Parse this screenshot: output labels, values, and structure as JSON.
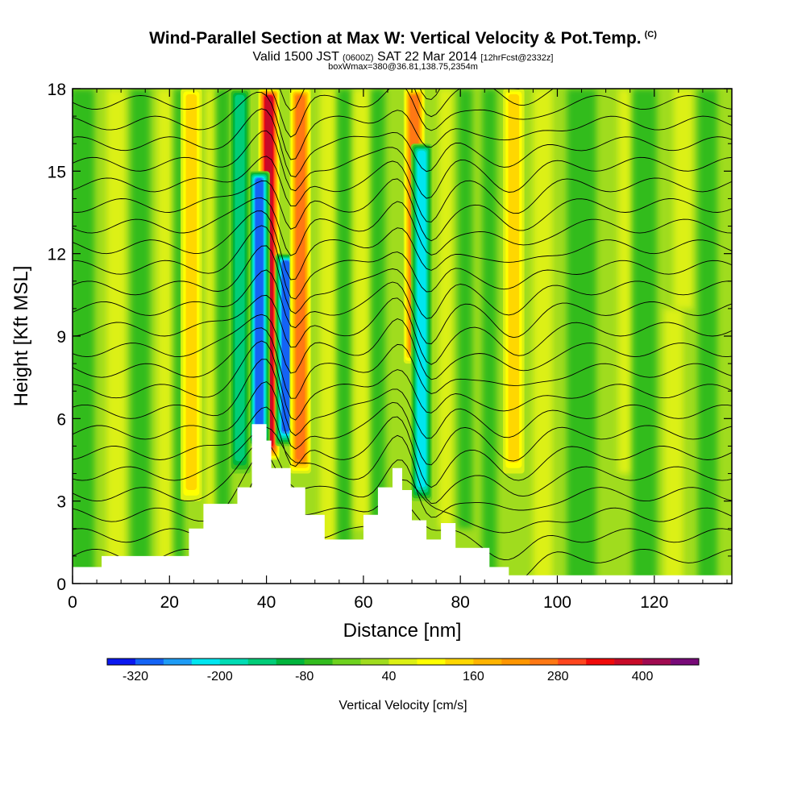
{
  "title": "Wind-Parallel Section at Max W: Vertical Velocity & Pot.Temp.",
  "copyright": "(C)",
  "subtitle_main": "Valid 1500 JST",
  "subtitle_small": "(0600Z)",
  "subtitle_date": "SAT 22 Mar 2014",
  "subtitle_fcst": "[12hrFcst@2332z]",
  "subtitle_box": "boxWmax=380@36.81,138.75,2354m",
  "chart_data": {
    "type": "heatmap",
    "xlabel": "Distance [nm]",
    "ylabel": "Height [Kft MSL]",
    "xlim": [
      0,
      136
    ],
    "ylim": [
      0,
      18
    ],
    "x_ticks": [
      "0",
      "20",
      "40",
      "60",
      "80",
      "100",
      "120"
    ],
    "y_ticks": [
      "0",
      "3",
      "6",
      "9",
      "12",
      "15",
      "18"
    ],
    "colorbar": {
      "label": "Vertical Velocity [cm/s]",
      "tick_labels": [
        "-320",
        "-200",
        "-80",
        "40",
        "160",
        "280",
        "400"
      ],
      "levels": [
        -360,
        -320,
        -280,
        -240,
        -200,
        -160,
        -120,
        -80,
        -40,
        0,
        40,
        80,
        120,
        160,
        200,
        240,
        280,
        320,
        360,
        400,
        440,
        480
      ],
      "colors": [
        "#0a18f0",
        "#1463f5",
        "#1e9cf5",
        "#00e6f0",
        "#00dcb4",
        "#00cd78",
        "#00b43c",
        "#32bc1e",
        "#6ed21e",
        "#a0dc1e",
        "#dcf014",
        "#ffff00",
        "#ffd700",
        "#ffb400",
        "#ff9600",
        "#ff7814",
        "#ff461e",
        "#f00a0a",
        "#c80a28",
        "#a00a50",
        "#780a78"
      ]
    },
    "velocity_features": [
      {
        "x": 40.5,
        "y_range": [
          4.5,
          18
        ],
        "peak": 360
      },
      {
        "x": 38.5,
        "y_range": [
          5,
          15
        ],
        "peak": -320
      },
      {
        "x": 44,
        "y_range": [
          5,
          12
        ],
        "peak": -320
      },
      {
        "x": 47,
        "y_range": [
          4,
          18
        ],
        "peak": 240
      },
      {
        "x": 70.5,
        "y_range": [
          8,
          18
        ],
        "peak": 260
      },
      {
        "x": 72,
        "y_range": [
          3,
          16
        ],
        "peak": -240
      },
      {
        "x": 34.5,
        "y_range": [
          4,
          18
        ],
        "peak": -160
      },
      {
        "x": 24.5,
        "y_range": [
          3,
          18
        ],
        "peak": 120
      },
      {
        "x": 91,
        "y_range": [
          4,
          18
        ],
        "peak": 120
      }
    ],
    "terrain_kft": [
      [
        0,
        0.6
      ],
      [
        6,
        0.6
      ],
      [
        6,
        1
      ],
      [
        24,
        1
      ],
      [
        24,
        2
      ],
      [
        27,
        2
      ],
      [
        27,
        2.9
      ],
      [
        34,
        2.9
      ],
      [
        34,
        3.5
      ],
      [
        37,
        3.5
      ],
      [
        37,
        5.8
      ],
      [
        40,
        5.8
      ],
      [
        40,
        5.2
      ],
      [
        41,
        5.2
      ],
      [
        41,
        4.2
      ],
      [
        45,
        4.2
      ],
      [
        45,
        3.5
      ],
      [
        48,
        3.5
      ],
      [
        48,
        2.5
      ],
      [
        52,
        2.5
      ],
      [
        52,
        1.6
      ],
      [
        60,
        1.6
      ],
      [
        60,
        2.5
      ],
      [
        63,
        2.5
      ],
      [
        63,
        3.5
      ],
      [
        66,
        3.5
      ],
      [
        66,
        4.2
      ],
      [
        68,
        4.2
      ],
      [
        68,
        3.4
      ],
      [
        70,
        3.4
      ],
      [
        70,
        2.3
      ],
      [
        73,
        2.3
      ],
      [
        73,
        1.6
      ],
      [
        76,
        1.6
      ],
      [
        76,
        2.2
      ],
      [
        79,
        2.2
      ],
      [
        79,
        1.3
      ],
      [
        86,
        1.3
      ],
      [
        86,
        0.6
      ],
      [
        90,
        0.6
      ],
      [
        90,
        0.3
      ],
      [
        136,
        0.3
      ]
    ]
  }
}
